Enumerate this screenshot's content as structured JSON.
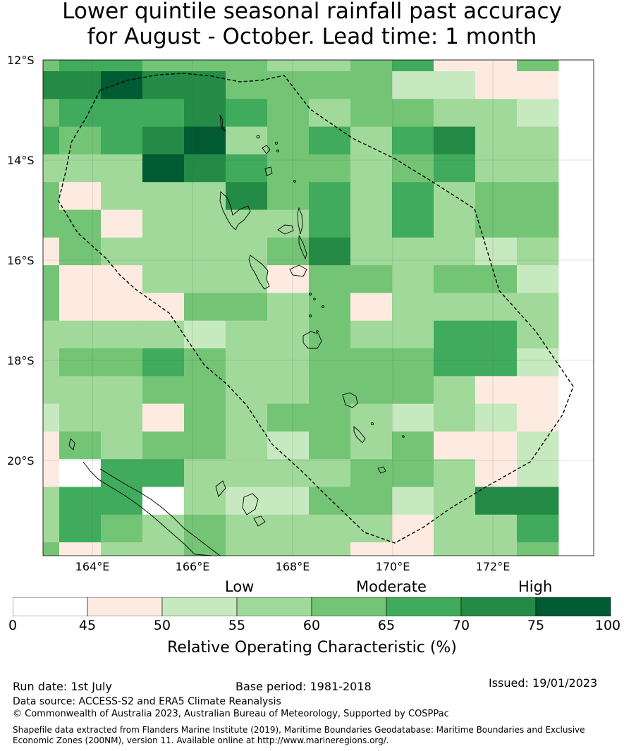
{
  "title": {
    "line1": "Lower quintile seasonal rainfall past accuracy",
    "line2": "for August - October. Lead time: 1 month"
  },
  "map": {
    "lat_labels": [
      "12°S",
      "14°S",
      "16°S",
      "18°S",
      "20°S"
    ],
    "lon_labels": [
      "164°E",
      "166°E",
      "168°E",
      "170°E",
      "172°E"
    ],
    "grid_rows": [
      "4554443345114",
      "6676644442211",
      "4555654344332",
      "5456734535633",
      "3337654434533",
      "4133364535344",
      "4413333535344",
      "1433334633323",
      "4113331443442",
      "4111443413333",
      "3333233433553",
      "3445433444552",
      "3334433444311",
      "2331434432321",
      "1434432434112",
      "1055333344312",
      "3550322442366",
      "3543433331335",
      "4133433311334",
      "4533333323334",
      "4133422333143"
    ],
    "palette": [
      "#ffffff",
      "#fdebe1",
      "#c7e9c0",
      "#a1d99b",
      "#74c476",
      "#41ab5d",
      "#238b45",
      "#005a32"
    ]
  },
  "colorbar": {
    "categories": [
      "Low",
      "Moderate",
      "High"
    ],
    "ticks": [
      "0",
      "45",
      "50",
      "55",
      "60",
      "65",
      "70",
      "75",
      "100"
    ],
    "title": "Relative Operating Characteristic (%)"
  },
  "footer": {
    "run_date": "Run date: 1st July",
    "base_period": "Base period: 1981-2018",
    "issued": "Issued: 19/01/2023",
    "data_source": "Data source: ACCESS-S2 and ERA5 Climate Reanalysis",
    "copyright": "© Commonwealth of Australia 2023, Australian Bureau of Meteorology, Supported by COSPPac",
    "shapefile_line1": "Shapefile data extracted from Flanders Marine Institute (2019), Maritime Boundaries Geodatabase: Maritime Boundaries and Exclusive",
    "shapefile_line2": "Economic Zones (200NM), version 11. Available online at http://www.marineregions.org/."
  }
}
